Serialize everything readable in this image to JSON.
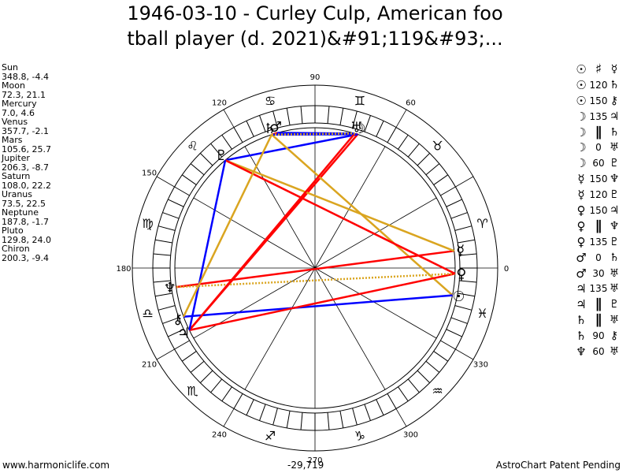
{
  "title": {
    "line1": "1946-03-10 - Curley Culp, American foo",
    "line2": "tball player (d. 2021)&#91;119&#93;..."
  },
  "planets": [
    {
      "name": "Sun",
      "glyph": "☉",
      "coords": "348.8, -4.4",
      "lon": 348.8
    },
    {
      "name": "Moon",
      "glyph": "☽",
      "coords": "72.3, 21.1",
      "lon": 72.3
    },
    {
      "name": "Mercury",
      "glyph": "☿",
      "coords": "7.0, 4.6",
      "lon": 7.0
    },
    {
      "name": "Venus",
      "glyph": "♀",
      "coords": "357.7, -2.1",
      "lon": 357.7
    },
    {
      "name": "Mars",
      "glyph": "♂",
      "coords": "105.6, 25.7",
      "lon": 105.6
    },
    {
      "name": "Jupiter",
      "glyph": "♃",
      "coords": "206.3, -8.7",
      "lon": 206.3
    },
    {
      "name": "Saturn",
      "glyph": "♄",
      "coords": "108.0, 22.2",
      "lon": 108.0
    },
    {
      "name": "Uranus",
      "glyph": "♅",
      "coords": "73.5, 22.5",
      "lon": 73.5
    },
    {
      "name": "Neptune",
      "glyph": "♆",
      "coords": "187.8, -1.7",
      "lon": 187.8
    },
    {
      "name": "Pluto",
      "glyph": "♇",
      "coords": "129.8, 24.0",
      "lon": 129.8
    },
    {
      "name": "Chiron",
      "glyph": "⚷",
      "coords": "200.3, -9.4",
      "lon": 200.3
    }
  ],
  "aspects": [
    {
      "p1": "☉",
      "angle": "♯",
      "p2": "☿",
      "glyph": true
    },
    {
      "p1": "☉",
      "angle": "120",
      "p2": "♄"
    },
    {
      "p1": "☉",
      "angle": "150",
      "p2": "⚷"
    },
    {
      "p1": "☽",
      "angle": "135",
      "p2": "♃"
    },
    {
      "p1": "☽",
      "angle": "∥",
      "p2": "♄",
      "glyph": true
    },
    {
      "p1": "☽",
      "angle": "0",
      "p2": "♅"
    },
    {
      "p1": "☽",
      "angle": "60",
      "p2": "♇"
    },
    {
      "p1": "☿",
      "angle": "150",
      "p2": "♆"
    },
    {
      "p1": "☿",
      "angle": "120",
      "p2": "♇"
    },
    {
      "p1": "♀",
      "angle": "150",
      "p2": "♃"
    },
    {
      "p1": "♀",
      "angle": "∥",
      "p2": "♆",
      "glyph": true
    },
    {
      "p1": "♀",
      "angle": "135",
      "p2": "♇"
    },
    {
      "p1": "♂",
      "angle": "0",
      "p2": "♄"
    },
    {
      "p1": "♂",
      "angle": "30",
      "p2": "♅"
    },
    {
      "p1": "♃",
      "angle": "135",
      "p2": "♅"
    },
    {
      "p1": "♃",
      "angle": "∥",
      "p2": "♇",
      "glyph": true
    },
    {
      "p1": "♄",
      "angle": "∥",
      "p2": "♅",
      "glyph": true
    },
    {
      "p1": "♄",
      "angle": "90",
      "p2": "⚷"
    },
    {
      "p1": "♆",
      "angle": "60",
      "p2": "♅"
    }
  ],
  "aspect_lines": [
    {
      "from": "Moon",
      "to": "Jupiter",
      "color": "#ff0000"
    },
    {
      "from": "Moon",
      "to": "Saturn",
      "color": "#0000ff"
    },
    {
      "from": "Moon",
      "to": "Uranus",
      "color": "#ff0000",
      "dotted": true
    },
    {
      "from": "Moon",
      "to": "Pluto",
      "color": "#0000ff"
    },
    {
      "from": "Sun",
      "to": "Saturn",
      "color": "#daa520"
    },
    {
      "from": "Sun",
      "to": "Chiron",
      "color": "#0000ff"
    },
    {
      "from": "Mercury",
      "to": "Neptune",
      "color": "#ff0000"
    },
    {
      "from": "Mercury",
      "to": "Pluto",
      "color": "#daa520"
    },
    {
      "from": "Venus",
      "to": "Jupiter",
      "color": "#ff0000"
    },
    {
      "from": "Venus",
      "to": "Neptune",
      "color": "#daa520",
      "dotted": true
    },
    {
      "from": "Venus",
      "to": "Pluto",
      "color": "#ff0000"
    },
    {
      "from": "Mars",
      "to": "Saturn",
      "color": "#ff0000"
    },
    {
      "from": "Mars",
      "to": "Uranus",
      "color": "#0000ff"
    },
    {
      "from": "Jupiter",
      "to": "Uranus",
      "color": "#ff0000"
    },
    {
      "from": "Jupiter",
      "to": "Pluto",
      "color": "#0000ff"
    },
    {
      "from": "Saturn",
      "to": "Uranus",
      "color": "#0000ff"
    },
    {
      "from": "Saturn",
      "to": "Chiron",
      "color": "#daa520"
    },
    {
      "from": "Saturn",
      "to": "Uranus",
      "color": "#daa520",
      "dotted": true
    }
  ],
  "degree_labels": [
    {
      "deg": 90,
      "text": "90"
    },
    {
      "deg": 60,
      "text": "60"
    },
    {
      "deg": 120,
      "text": "120"
    },
    {
      "deg": 150,
      "text": "150"
    },
    {
      "deg": 180,
      "text": "180"
    },
    {
      "deg": 210,
      "text": "210"
    },
    {
      "deg": 240,
      "text": "240"
    },
    {
      "deg": 270,
      "text": "270"
    },
    {
      "deg": 300,
      "text": "300"
    },
    {
      "deg": 330,
      "text": "330"
    },
    {
      "deg": 0,
      "text": "0"
    }
  ],
  "zodiac_signs": [
    {
      "glyph": "♈",
      "deg": 15
    },
    {
      "glyph": "♉",
      "deg": 45
    },
    {
      "glyph": "♊",
      "deg": 75
    },
    {
      "glyph": "♋",
      "deg": 105
    },
    {
      "glyph": "♌",
      "deg": 135
    },
    {
      "glyph": "♍",
      "deg": 165
    },
    {
      "glyph": "♎",
      "deg": 195
    },
    {
      "glyph": "♏",
      "deg": 225
    },
    {
      "glyph": "♐",
      "deg": 255
    },
    {
      "glyph": "♑",
      "deg": 285
    },
    {
      "glyph": "♒",
      "deg": 315
    },
    {
      "glyph": "♓",
      "deg": 345
    }
  ],
  "colors": {
    "conjunction_hard": "#ff0000",
    "soft": "#0000ff",
    "minor": "#daa520"
  },
  "footer": {
    "website": "www.harmoniclife.com",
    "value": "-29,719",
    "patent": "AstroChart Patent Pending"
  }
}
